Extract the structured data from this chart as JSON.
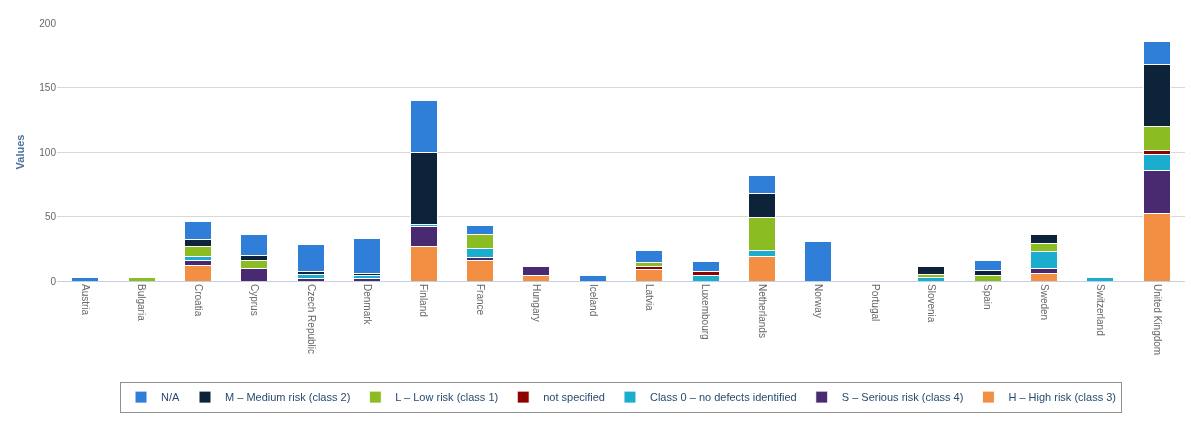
{
  "chart_data": {
    "type": "bar",
    "stacked": true,
    "ylabel": "Values",
    "categories": [
      "Austria",
      "Bulgaria",
      "Croatia",
      "Cyprus",
      "Czech Republic",
      "Denmark",
      "Finland",
      "France",
      "Hungary",
      "Iceland",
      "Latvia",
      "Luxembourg",
      "Netherlands",
      "Norway",
      "Portugal",
      "Slovenia",
      "Spain",
      "Sweden",
      "Switzerland",
      "United Kingdom"
    ],
    "series": [
      {
        "name": "H – High risk (class 3)",
        "color": "#f28f43",
        "values": [
          null,
          null,
          12,
          null,
          null,
          null,
          27,
          16,
          4,
          null,
          9,
          null,
          19,
          null,
          null,
          null,
          null,
          6,
          null,
          52
        ]
      },
      {
        "name": "S – Serious risk (class 4)",
        "color": "#492970",
        "values": [
          null,
          null,
          4,
          10,
          2,
          2,
          15,
          2,
          7,
          null,
          null,
          null,
          null,
          null,
          null,
          null,
          null,
          4,
          null,
          34
        ]
      },
      {
        "name": "Class 0 – no defects identified",
        "color": "#1aadce",
        "values": [
          null,
          null,
          3,
          null,
          3,
          2,
          2,
          7,
          null,
          null,
          null,
          4,
          5,
          null,
          null,
          3,
          null,
          13,
          3,
          12
        ]
      },
      {
        "name": "not specified",
        "color": "#910000",
        "values": [
          null,
          null,
          null,
          null,
          null,
          null,
          null,
          null,
          null,
          null,
          2,
          3,
          null,
          null,
          null,
          null,
          null,
          null,
          null,
          3
        ]
      },
      {
        "name": "L – Low risk (class 1)",
        "color": "#8bbc21",
        "values": [
          null,
          3,
          8,
          6,
          null,
          null,
          null,
          11,
          null,
          null,
          3,
          null,
          25,
          null,
          null,
          2,
          4,
          6,
          null,
          19
        ]
      },
      {
        "name": "M – Medium risk (class 2)",
        "color": "#0d233a",
        "values": [
          null,
          null,
          5,
          4,
          2,
          2,
          56,
          null,
          null,
          null,
          null,
          null,
          19,
          null,
          null,
          6,
          4,
          7,
          null,
          48
        ]
      },
      {
        "name": "N/A",
        "color": "#2f7ed8",
        "values": [
          3,
          null,
          14,
          16,
          21,
          27,
          40,
          7,
          null,
          4,
          10,
          8,
          14,
          31,
          null,
          null,
          8,
          null,
          null,
          18
        ]
      }
    ],
    "ylim": [
      0,
      200
    ],
    "yticks": [
      0,
      50,
      100,
      150,
      200
    ],
    "grid": "y",
    "legend": "bottom"
  }
}
